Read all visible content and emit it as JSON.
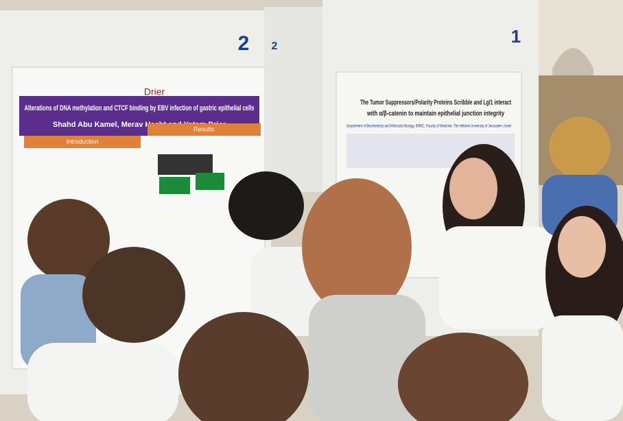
{
  "board_numbers": {
    "left": "2",
    "right": "1",
    "back": "2"
  },
  "left_poster": {
    "logo": "Drier",
    "title": "Alterations of DNA methylation and CTCF binding by EBV infection of gastric epithelial cells",
    "authors": "Shahd Abu Kamel, Merav Hecht and Yotam Drier",
    "sections": [
      "Introduction",
      "Results"
    ]
  },
  "right_poster": {
    "title_lines": [
      "The Tumor Suppressors/Polarity Proteins Scribble and Lgl1 interact",
      "with α/β-catenin to maintain epithelial junction integrity"
    ],
    "affiliation": "Department of Biochemistry and Molecular Biology, IMRIC, Faculty of Medicine, The Hebrew University of Jerusalem, Israel"
  }
}
